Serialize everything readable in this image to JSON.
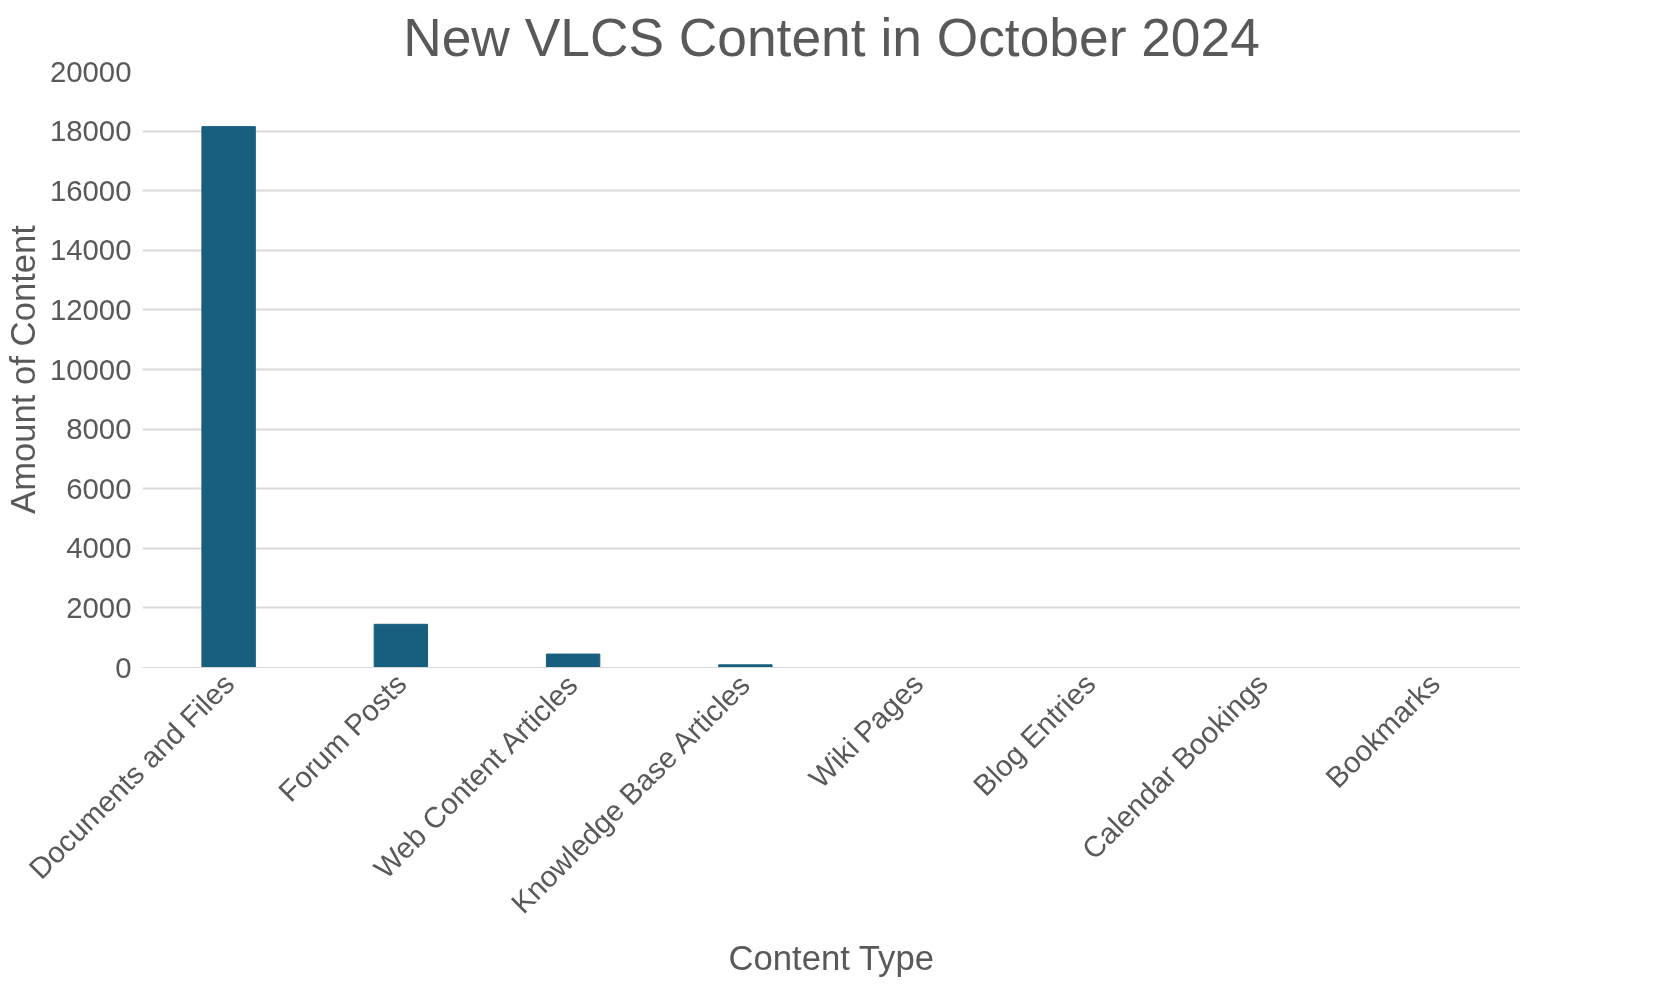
{
  "chart_data": {
    "type": "bar",
    "title": "New VLCS Content in October 2024",
    "xlabel": "Content Type",
    "ylabel": "Amount of Content",
    "categories": [
      "Documents and Files",
      "Forum Posts",
      "Web Content Articles",
      "Knowledge Base Articles",
      "Wiki Pages",
      "Blog Entries",
      "Calendar Bookings",
      "Bookmarks"
    ],
    "values": [
      18150,
      1450,
      450,
      90,
      0,
      0,
      0,
      0
    ],
    "color": "#175e7f",
    "ylim": [
      0,
      20000
    ],
    "yticks": [
      0,
      2000,
      4000,
      6000,
      8000,
      10000,
      12000,
      14000,
      16000,
      18000,
      20000
    ],
    "grid": "y"
  }
}
